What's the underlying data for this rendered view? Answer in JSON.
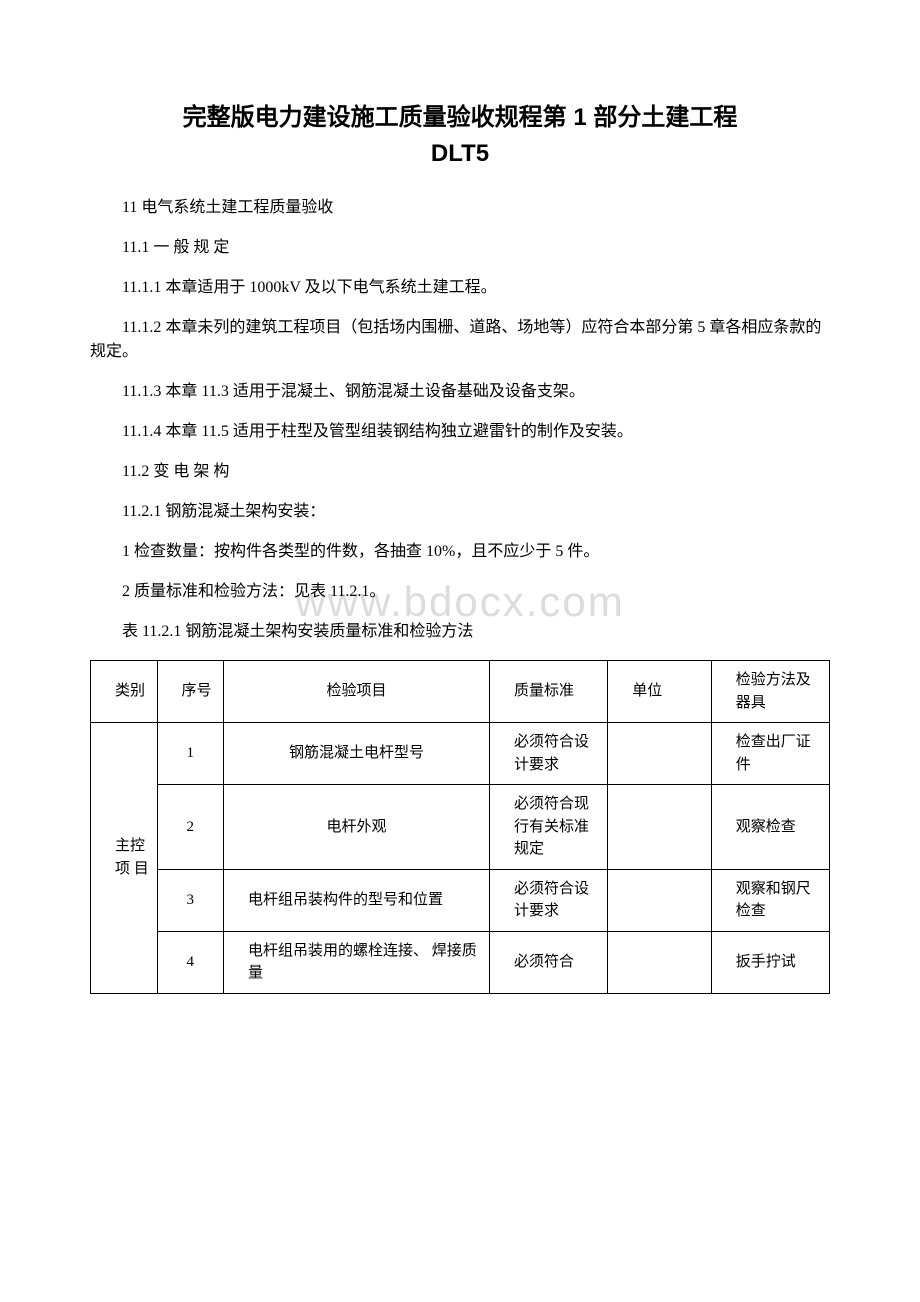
{
  "watermark": "www.bdocx.com",
  "title_line1": "完整版电力建设施工质量验收规程第 1 部分土建工程",
  "title_line2": "DLT5",
  "paragraphs": [
    "11 电气系统土建工程质量验收",
    "11.1 一 般 规 定",
    "11.1.1 本章适用于 1000kV 及以下电气系统土建工程。",
    "11.1.2 本章未列的建筑工程项目（包括场内围栅、道路、场地等）应符合本部分第 5 章各相应条款的 规定。",
    "11.1.3 本章 11.3 适用于混凝土、钢筋混凝土设备基础及设备支架。",
    "11.1.4 本章 11.5 适用于柱型及管型组装钢结构独立避雷针的制作及安装。",
    "11.2 变 电 架 构",
    "11.2.1 钢筋混凝土架构安装：",
    "1 检查数量：按构件各类型的件数，各抽查 10%，且不应少于 5 件。",
    "2 质量标准和检验方法：见表 11.2.1。",
    "表 11.2.1 钢筋混凝土架构安装质量标准和检验方法"
  ],
  "table": {
    "header": {
      "col1": "类别",
      "col2": "序号",
      "col3": "检验项目",
      "col4": "质量标准",
      "col5": "单位",
      "col6": "检验方法及器具"
    },
    "category": "主控 项 目",
    "rows": [
      {
        "num": "1",
        "item": "钢筋混凝土电杆型号",
        "standard": "必须符合设计要求",
        "unit": "",
        "method": "检查出厂证件"
      },
      {
        "num": "2",
        "item": "电杆外观",
        "standard": "必须符合现行有关标准规定",
        "unit": "",
        "method": "观察检查"
      },
      {
        "num": "3",
        "item": "电杆组吊装构件的型号和位置",
        "standard": "必须符合设计要求",
        "unit": "",
        "method": "观察和钢尺检查"
      },
      {
        "num": "4",
        "item": "电杆组吊装用的螺栓连接、 焊接质量",
        "standard": "必须符合",
        "unit": "",
        "method": "扳手拧试"
      }
    ]
  }
}
